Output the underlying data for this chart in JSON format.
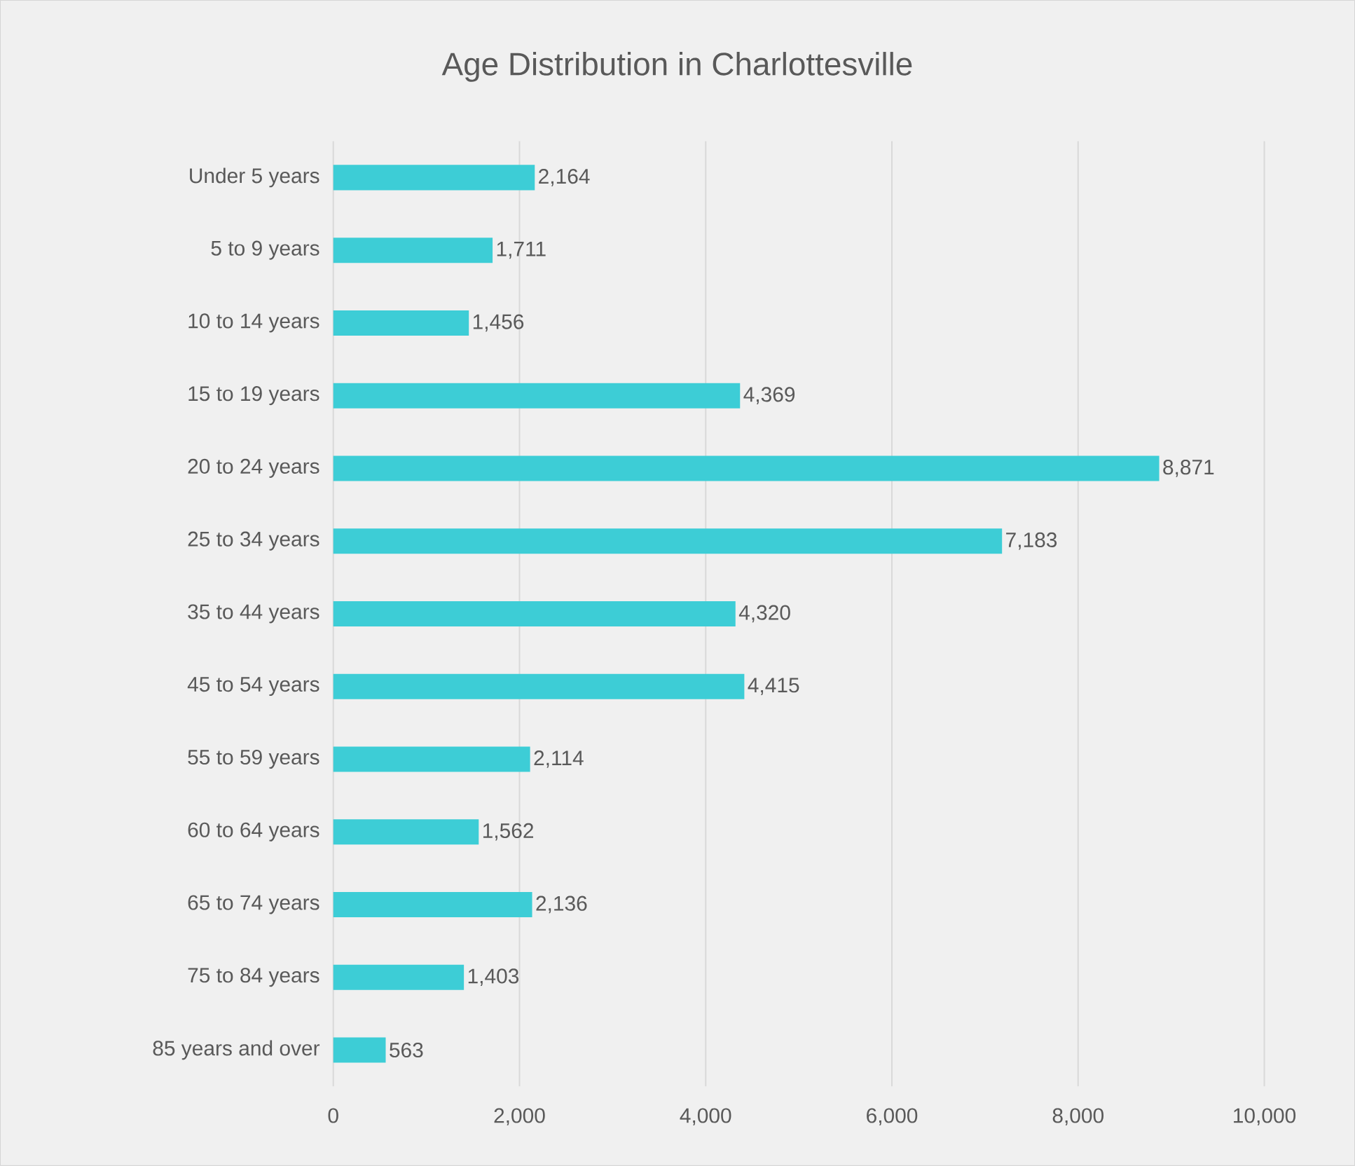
{
  "chart_data": {
    "type": "bar",
    "orientation": "horizontal",
    "title": "Age Distribution in Charlottesville",
    "categories": [
      "Under 5 years",
      "5 to 9 years",
      "10 to 14 years",
      "15 to 19 years",
      "20 to 24 years",
      "25 to 34 years",
      "35 to 44 years",
      "45 to 54 years",
      "55 to 59 years",
      "60 to 64 years",
      "65 to 74 years",
      "75 to 84 years",
      "85 years and over"
    ],
    "values": [
      2164,
      1711,
      1456,
      4369,
      8871,
      7183,
      4320,
      4415,
      2114,
      1562,
      2136,
      1403,
      563
    ],
    "value_labels": [
      "2,164",
      "1,711",
      "1,456",
      "4,369",
      "8,871",
      "7,183",
      "4,320",
      "4,415",
      "2,114",
      "1,562",
      "2,136",
      "1,403",
      "563"
    ],
    "color": "#3dcdd6",
    "xlim": [
      0,
      10000
    ],
    "xticks": [
      0,
      {
        "value": 2000,
        "label": "2,000"
      },
      {
        "value": 4000,
        "label": "4,000"
      },
      {
        "value": 6000,
        "label": "6,000"
      },
      {
        "value": 8000,
        "label": "8,000"
      },
      {
        "value": 10000,
        "label": "10,000"
      }
    ],
    "grid": "x"
  }
}
